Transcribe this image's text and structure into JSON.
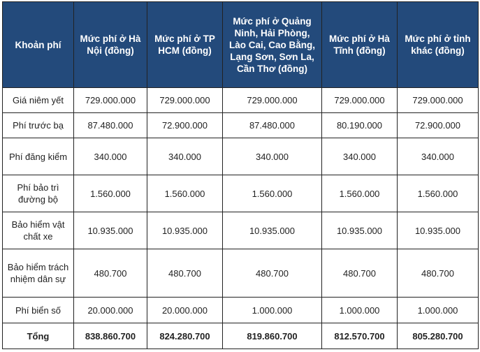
{
  "header": {
    "item": "Khoản phí",
    "columns": [
      "Mức phí ở Hà Nội (đồng)",
      "Mức phí ở TP HCM (đồng)",
      "Mức phí ở Quảng Ninh, Hải Phòng, Lào Cai, Cao Bằng, Lạng Sơn, Sơn La, Cần Thơ (đồng)",
      "Mức phí ở Hà Tĩnh (đồng)",
      "Mức phí ở tỉnh khác (đồng)"
    ]
  },
  "rows": [
    {
      "label": "Giá niêm yết",
      "values": [
        "729.000.000",
        "729.000.000",
        "729.000.000",
        "729.000.000",
        "729.000.000"
      ]
    },
    {
      "label": "Phí trước bạ",
      "values": [
        "87.480.000",
        "72.900.000",
        "87.480.000",
        "80.190.000",
        "72.900.000"
      ]
    },
    {
      "label": "Phí đăng kiểm",
      "values": [
        "340.000",
        "340.000",
        "340.000",
        "340.000",
        "340.000"
      ]
    },
    {
      "label": "Phí bảo trì đường bộ",
      "values": [
        "1.560.000",
        "1.560.000",
        "1.560.000",
        "1.560.000",
        "1.560.000"
      ]
    },
    {
      "label": "Bảo hiểm vật chất xe",
      "values": [
        "10.935.000",
        "10.935.000",
        "10.935.000",
        "10.935.000",
        "10.935.000"
      ]
    },
    {
      "label": "Bảo hiểm trách nhiệm dân sự",
      "values": [
        "480.700",
        "480.700",
        "480.700",
        "480.700",
        "480.700"
      ]
    },
    {
      "label": "Phí biển số",
      "values": [
        "20.000.000",
        "20.000.000",
        "1.000.000",
        "1.000.000",
        "1.000.000"
      ]
    }
  ],
  "total": {
    "label": "Tổng",
    "values": [
      "838.860.700",
      "824.280.700",
      "819.860.700",
      "812.570.700",
      "805.280.700"
    ]
  }
}
